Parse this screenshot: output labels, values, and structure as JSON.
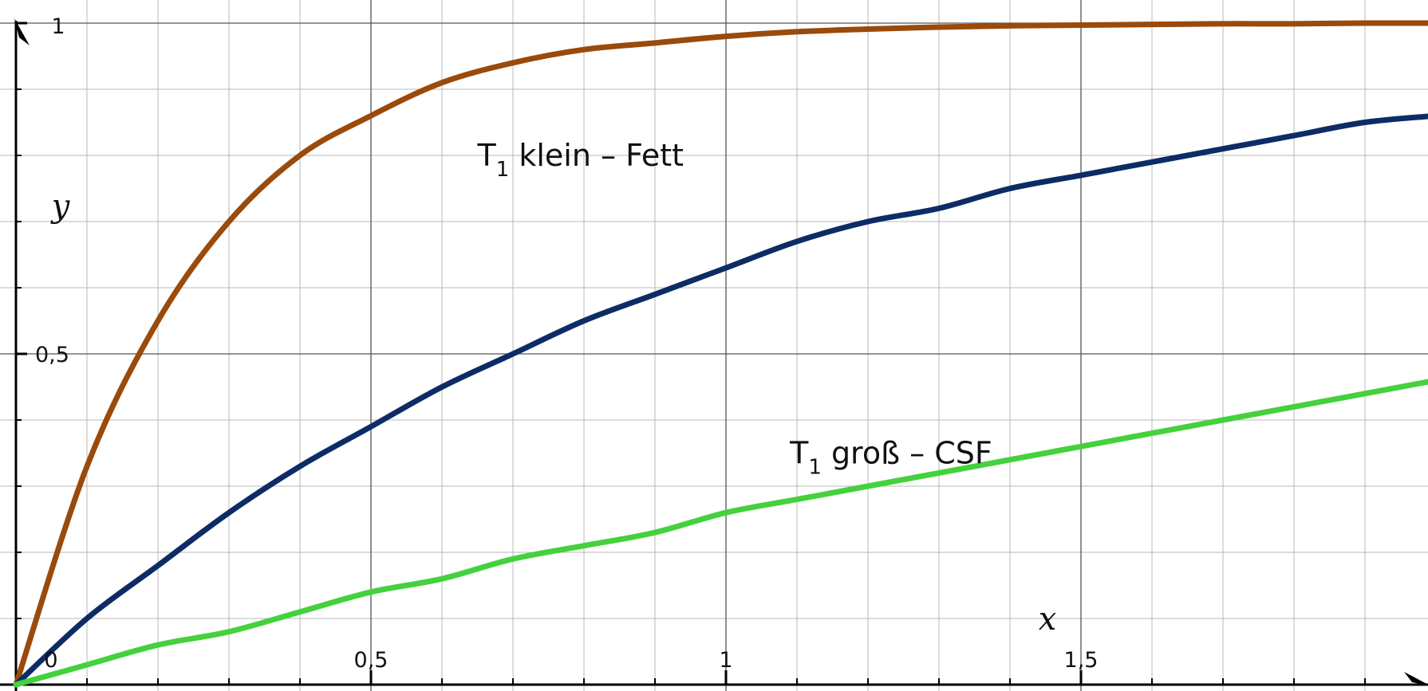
{
  "chart_data": {
    "type": "line",
    "xlabel": "x",
    "ylabel": "y",
    "xlim": [
      0,
      2
    ],
    "ylim": [
      0,
      1
    ],
    "grid": true,
    "x_ticks": [
      {
        "value": 0,
        "label": "0"
      },
      {
        "value": 0.5,
        "label": "0,5"
      },
      {
        "value": 1,
        "label": "1"
      },
      {
        "value": 1.5,
        "label": "1,5"
      }
    ],
    "y_ticks": [
      {
        "value": 0.5,
        "label": "0,5"
      },
      {
        "value": 1,
        "label": "1"
      }
    ],
    "x": [
      0,
      0.1,
      0.2,
      0.3,
      0.4,
      0.5,
      0.6,
      0.7,
      0.8,
      0.9,
      1.0,
      1.1,
      1.2,
      1.3,
      1.4,
      1.5,
      1.6,
      1.7,
      1.8,
      1.9,
      2.0
    ],
    "series": [
      {
        "color": "#9a4a0b",
        "values": [
          0,
          0.33,
          0.55,
          0.7,
          0.8,
          0.86,
          0.91,
          0.94,
          0.96,
          0.97,
          0.98,
          0.987,
          0.991,
          0.994,
          0.996,
          0.997,
          0.998,
          0.999,
          0.999,
          1.0,
          1.0
        ]
      },
      {
        "color": "#0d2c66",
        "values": [
          0,
          0.1,
          0.18,
          0.26,
          0.33,
          0.39,
          0.45,
          0.5,
          0.55,
          0.59,
          0.63,
          0.67,
          0.7,
          0.72,
          0.75,
          0.77,
          0.79,
          0.81,
          0.83,
          0.85,
          0.86
        ]
      },
      {
        "color": "#44d13d",
        "values": [
          0,
          0.03,
          0.06,
          0.08,
          0.11,
          0.14,
          0.16,
          0.19,
          0.21,
          0.23,
          0.26,
          0.28,
          0.3,
          0.32,
          0.34,
          0.36,
          0.38,
          0.4,
          0.42,
          0.44,
          0.46
        ]
      }
    ],
    "annotations": [
      {
        "base": "T",
        "sub": "1",
        "rest": " klein – Fett",
        "x": 0.65,
        "y": 0.8
      },
      {
        "base": "T",
        "sub": "1",
        "rest": " groß – CSF",
        "x": 1.09,
        "y": 0.35
      }
    ]
  }
}
